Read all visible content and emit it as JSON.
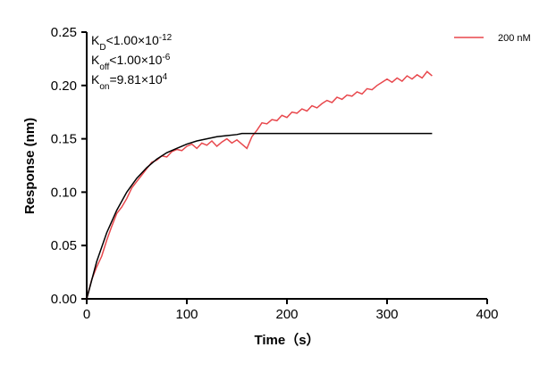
{
  "chart_data": {
    "type": "line",
    "x_label": "Time（s）",
    "y_label": "Response (nm)",
    "xlim": [
      0,
      400
    ],
    "xticks": [
      0,
      100,
      200,
      300,
      400
    ],
    "ylim": [
      0,
      0.25
    ],
    "yticks": [
      {
        "value": 0,
        "label": "0.00"
      },
      0.05,
      {
        "value": 0.1,
        "label": "0.10"
      },
      0.15,
      {
        "value": 0.2,
        "label": "0.20"
      },
      0.25
    ],
    "annotations": [
      [
        {
          "text": "K"
        },
        {
          "text": "D",
          "style": "sub"
        },
        {
          "text": "<1.00×10"
        },
        {
          "text": "-12",
          "style": "sup"
        }
      ],
      [
        {
          "text": "K"
        },
        {
          "text": "off",
          "style": "sub"
        },
        {
          "text": "<1.00×10"
        },
        {
          "text": "-6",
          "style": "sup"
        }
      ],
      [
        {
          "text": "K"
        },
        {
          "text": "on",
          "style": "sub"
        },
        {
          "text": "=9.81×10"
        },
        {
          "text": "4",
          "style": "sup"
        }
      ]
    ],
    "series": [
      {
        "name": "200 nM",
        "color": "#e8474c",
        "x": [
          0,
          5,
          10,
          15,
          20,
          25,
          30,
          35,
          40,
          45,
          50,
          55,
          60,
          65,
          70,
          75,
          80,
          85,
          90,
          95,
          100,
          105,
          110,
          115,
          120,
          125,
          130,
          135,
          140,
          145,
          150,
          155,
          160,
          165,
          170,
          175,
          180,
          185,
          190,
          195,
          200,
          205,
          210,
          215,
          220,
          225,
          230,
          235,
          240,
          245,
          250,
          255,
          260,
          265,
          270,
          275,
          280,
          285,
          290,
          295,
          300,
          305,
          310,
          315,
          320,
          325,
          330,
          335,
          340,
          345
        ],
        "values": [
          0.0,
          0.018,
          0.03,
          0.04,
          0.055,
          0.068,
          0.08,
          0.086,
          0.094,
          0.104,
          0.11,
          0.116,
          0.122,
          0.128,
          0.13,
          0.134,
          0.133,
          0.138,
          0.14,
          0.139,
          0.143,
          0.145,
          0.141,
          0.146,
          0.144,
          0.148,
          0.143,
          0.147,
          0.15,
          0.146,
          0.149,
          0.145,
          0.141,
          0.152,
          0.158,
          0.165,
          0.164,
          0.168,
          0.167,
          0.172,
          0.17,
          0.175,
          0.174,
          0.178,
          0.176,
          0.181,
          0.179,
          0.183,
          0.186,
          0.184,
          0.189,
          0.187,
          0.191,
          0.19,
          0.194,
          0.192,
          0.197,
          0.196,
          0.2,
          0.203,
          0.206,
          0.203,
          0.207,
          0.204,
          0.209,
          0.206,
          0.21,
          0.207,
          0.213,
          0.209
        ]
      },
      {
        "color": "#000000",
        "x": [
          0,
          10,
          20,
          30,
          40,
          50,
          60,
          70,
          80,
          90,
          100,
          110,
          120,
          130,
          140,
          150,
          155,
          345
        ],
        "values": [
          0,
          0.035,
          0.062,
          0.083,
          0.1,
          0.113,
          0.123,
          0.131,
          0.137,
          0.141,
          0.145,
          0.148,
          0.15,
          0.152,
          0.153,
          0.154,
          0.155,
          0.155
        ]
      }
    ]
  }
}
